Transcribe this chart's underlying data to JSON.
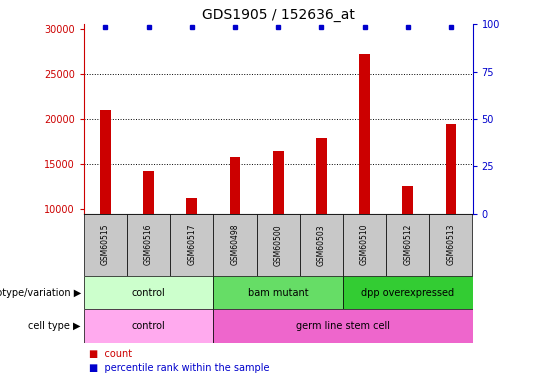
{
  "title": "GDS1905 / 152636_at",
  "samples": [
    "GSM60515",
    "GSM60516",
    "GSM60517",
    "GSM60498",
    "GSM60500",
    "GSM60503",
    "GSM60510",
    "GSM60512",
    "GSM60513"
  ],
  "counts": [
    21000,
    14200,
    11300,
    15800,
    16500,
    17900,
    27200,
    12600,
    19400
  ],
  "ylim_left": [
    9500,
    30500
  ],
  "ylim_right": [
    0,
    100
  ],
  "yticks_left": [
    10000,
    15000,
    20000,
    25000,
    30000
  ],
  "yticks_right": [
    0,
    25,
    50,
    75,
    100
  ],
  "bar_color": "#cc0000",
  "dot_color": "#0000cc",
  "axis_color_left": "#cc0000",
  "axis_color_right": "#0000cc",
  "genotype_groups": [
    {
      "label": "control",
      "start": 0,
      "end": 3,
      "color": "#ccffcc"
    },
    {
      "label": "bam mutant",
      "start": 3,
      "end": 6,
      "color": "#66dd66"
    },
    {
      "label": "dpp overexpressed",
      "start": 6,
      "end": 9,
      "color": "#33cc33"
    }
  ],
  "cell_type_groups": [
    {
      "label": "control",
      "start": 0,
      "end": 3,
      "color": "#ffaaee"
    },
    {
      "label": "germ line stem cell",
      "start": 3,
      "end": 9,
      "color": "#ee66cc"
    }
  ],
  "sample_bg_color": "#c8c8c8",
  "legend_count_color": "#cc0000",
  "legend_pct_color": "#0000cc",
  "fig_width": 5.4,
  "fig_height": 3.75,
  "fig_dpi": 100
}
